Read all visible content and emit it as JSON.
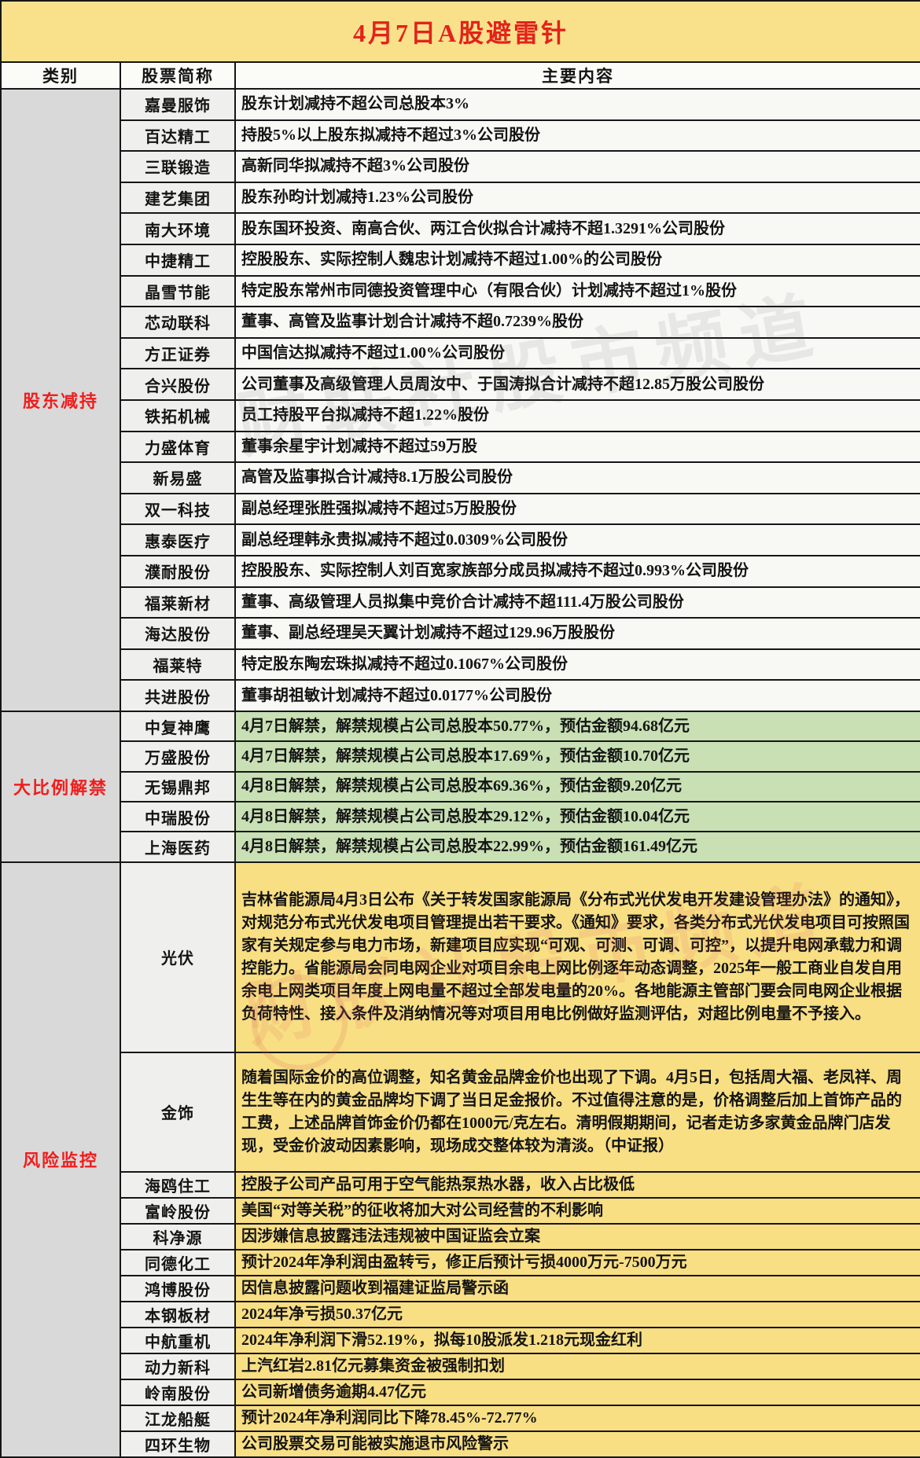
{
  "title": "4月7日A股避雷针",
  "columns": {
    "category": "类别",
    "stock": "股票简称",
    "content": "主要内容"
  },
  "colors": {
    "title_bg": "#f9e18c",
    "title_text": "#e3231a",
    "category_text": "#f11d1d",
    "category_bg": "#d9d9d9",
    "white_row_bg": "#f8f8f5",
    "green_row_bg": "#c8e0b4",
    "yellow_row_bg": "#f8df84",
    "border": "#161616"
  },
  "watermark": {
    "text": "财联社股市频道"
  },
  "sections": [
    {
      "id": "shareholder",
      "label": "股东减持",
      "rows": [
        {
          "name": "嘉曼服饰",
          "content": "股东计划减持不超公司总股本3%"
        },
        {
          "name": "百达精工",
          "content": "持股5%以上股东拟减持不超过3%公司股份"
        },
        {
          "name": "三联锻造",
          "content": "高新同华拟减持不超3%公司股份"
        },
        {
          "name": "建艺集团",
          "content": "股东孙昀计划减持1.23%公司股份"
        },
        {
          "name": "南大环境",
          "content": "股东国环投资、南高合伙、两江合伙拟合计减持不超1.3291%公司股份"
        },
        {
          "name": "中捷精工",
          "content": "控股股东、实际控制人魏忠计划减持不超过1.00%的公司股份"
        },
        {
          "name": "晶雪节能",
          "content": "特定股东常州市同德投资管理中心（有限合伙）计划减持不超过1%股份"
        },
        {
          "name": "芯动联科",
          "content": "董事、高管及监事计划合计减持不超0.7239%股份"
        },
        {
          "name": "方正证券",
          "content": "中国信达拟减持不超过1.00%公司股份"
        },
        {
          "name": "合兴股份",
          "content": "公司董事及高级管理人员周汝中、于国涛拟合计减持不超12.85万股公司股份"
        },
        {
          "name": "铁拓机械",
          "content": "员工持股平台拟减持不超1.22%股份"
        },
        {
          "name": "力盛体育",
          "content": "董事余星宇计划减持不超过59万股"
        },
        {
          "name": "新易盛",
          "content": "高管及监事拟合计减持8.1万股公司股份"
        },
        {
          "name": "双一科技",
          "content": "副总经理张胜强拟减持不超过5万股股份"
        },
        {
          "name": "惠泰医疗",
          "content": "副总经理韩永贵拟减持不超过0.0309%公司股份"
        },
        {
          "name": "濮耐股份",
          "content": "控股股东、实际控制人刘百宽家族部分成员拟减持不超过0.993%公司股份"
        },
        {
          "name": "福莱新材",
          "content": "董事、高级管理人员拟集中竞价合计减持不超111.4万股公司股份"
        },
        {
          "name": "海达股份",
          "content": "董事、副总经理吴天翼计划减持不超过129.96万股股份"
        },
        {
          "name": "福莱特",
          "content": "特定股东陶宏珠拟减持不超过0.1067%公司股份"
        },
        {
          "name": "共进股份",
          "content": "董事胡祖敏计划减持不超过0.0177%公司股份"
        }
      ]
    },
    {
      "id": "unlock",
      "label": "大比例解禁",
      "rows": [
        {
          "name": "中复神鹰",
          "content": "4月7日解禁，解禁规模占公司总股本50.77%，预估金额94.68亿元"
        },
        {
          "name": "万盛股份",
          "content": "4月7日解禁，解禁规模占公司总股本17.69%，预估金额10.70亿元"
        },
        {
          "name": "无锡鼎邦",
          "content": "4月8日解禁，解禁规模占公司总股本69.36%，预估金额9.20亿元"
        },
        {
          "name": "中瑞股份",
          "content": "4月8日解禁，解禁规模占公司总股本29.12%，预估金额10.04亿元"
        },
        {
          "name": "上海医药",
          "content": "4月8日解禁，解禁规模占公司总股本22.99%，预估金额161.49亿元"
        }
      ]
    },
    {
      "id": "risk",
      "label": "风险监控",
      "rows": [
        {
          "name": "光伏",
          "content": "吉林省能源局4月3日公布《关于转发国家能源局《分布式光伏发电开发建设管理办法》的通知》，对规范分布式光伏发电项目管理提出若干要求。《通知》要求，各类分布式光伏发电项目可按照国家有关规定参与电力市场，新建项目应实现“可观、可测、可调、可控”，以提升电网承载力和调控能力。省能源局会同电网企业对项目余电上网比例逐年动态调整，2025年一般工商业自发自用余电上网类项目年度上网电量不超过全部发电量的20%。各地能源主管部门要会同电网企业根据负荷特性、接入条件及消纳情况等对项目用电比例做好监测评估，对超比例电量不予接入。"
        },
        {
          "name": "金饰",
          "content": "随着国际金价的高位调整，知名黄金品牌金价也出现了下调。4月5日，包括周大福、老凤祥、周生生等在内的黄金品牌均下调了当日足金报价。不过值得注意的是，价格调整后加上首饰产品的工费，上述品牌首饰金价仍都在1000元/克左右。清明假期期间，记者走访多家黄金品牌门店发现，受金价波动因素影响，现场成交整体较为清淡。（中证报）"
        },
        {
          "name": "海鸥住工",
          "content": "控股子公司产品可用于空气能热泵热水器，收入占比极低"
        },
        {
          "name": "富岭股份",
          "content": "美国“对等关税”的征收将加大对公司经营的不利影响"
        },
        {
          "name": "科净源",
          "content": "因涉嫌信息披露违法违规被中国证监会立案"
        },
        {
          "name": "同德化工",
          "content": "预计2024年净利润由盈转亏，修正后预计亏损4000万元-7500万元"
        },
        {
          "name": "鸿博股份",
          "content": "因信息披露问题收到福建证监局警示函"
        },
        {
          "name": "本钢板材",
          "content": "2024年净亏损50.37亿元"
        },
        {
          "name": "中航重机",
          "content": "2024年净利润下滑52.19%，拟每10股派发1.218元现金红利"
        },
        {
          "name": "动力新科",
          "content": "上汽红岩2.81亿元募集资金被强制扣划"
        },
        {
          "name": "岭南股份",
          "content": "公司新增债务逾期4.47亿元"
        },
        {
          "name": "江龙船艇",
          "content": "预计2024年净利润同比下降78.45%-72.77%"
        },
        {
          "name": "四环生物",
          "content": "公司股票交易可能被实施退市风险警示"
        }
      ]
    }
  ]
}
